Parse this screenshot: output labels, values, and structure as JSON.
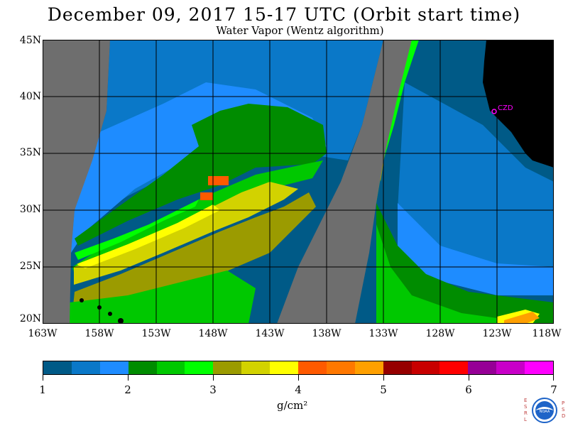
{
  "title": "December 09, 2017  15-17 UTC  (Orbit start time)",
  "subtitle": "Water Vapor (Wentz algorithm)",
  "map": {
    "lat_labels": [
      "45N",
      "40N",
      "35N",
      "30N",
      "25N",
      "20N"
    ],
    "lon_labels": [
      "163W",
      "158W",
      "153W",
      "148W",
      "143W",
      "138W",
      "133W",
      "128W",
      "123W",
      "118W"
    ],
    "station_label": "CZD",
    "colors": {
      "missing": "#6e6e6e",
      "land": "#000000",
      "station": "#ff00ff",
      "grid": "#000000"
    }
  },
  "colorbar": {
    "tick_labels": [
      "1",
      "2",
      "3",
      "4",
      "5",
      "6",
      "7"
    ],
    "units": "g/cm²",
    "colors": [
      "#005a87",
      "#0a78c8",
      "#1e8cff",
      "#008c00",
      "#00c800",
      "#00ff00",
      "#9b9b00",
      "#d2d200",
      "#ffff00",
      "#ff5a00",
      "#ff7800",
      "#ffa000",
      "#960000",
      "#c80000",
      "#ff0000",
      "#960096",
      "#c800c8",
      "#ff00ff"
    ]
  },
  "logo": {
    "left_text": "ESRL",
    "right_text": "PSD",
    "center_text": "NOAA"
  }
}
